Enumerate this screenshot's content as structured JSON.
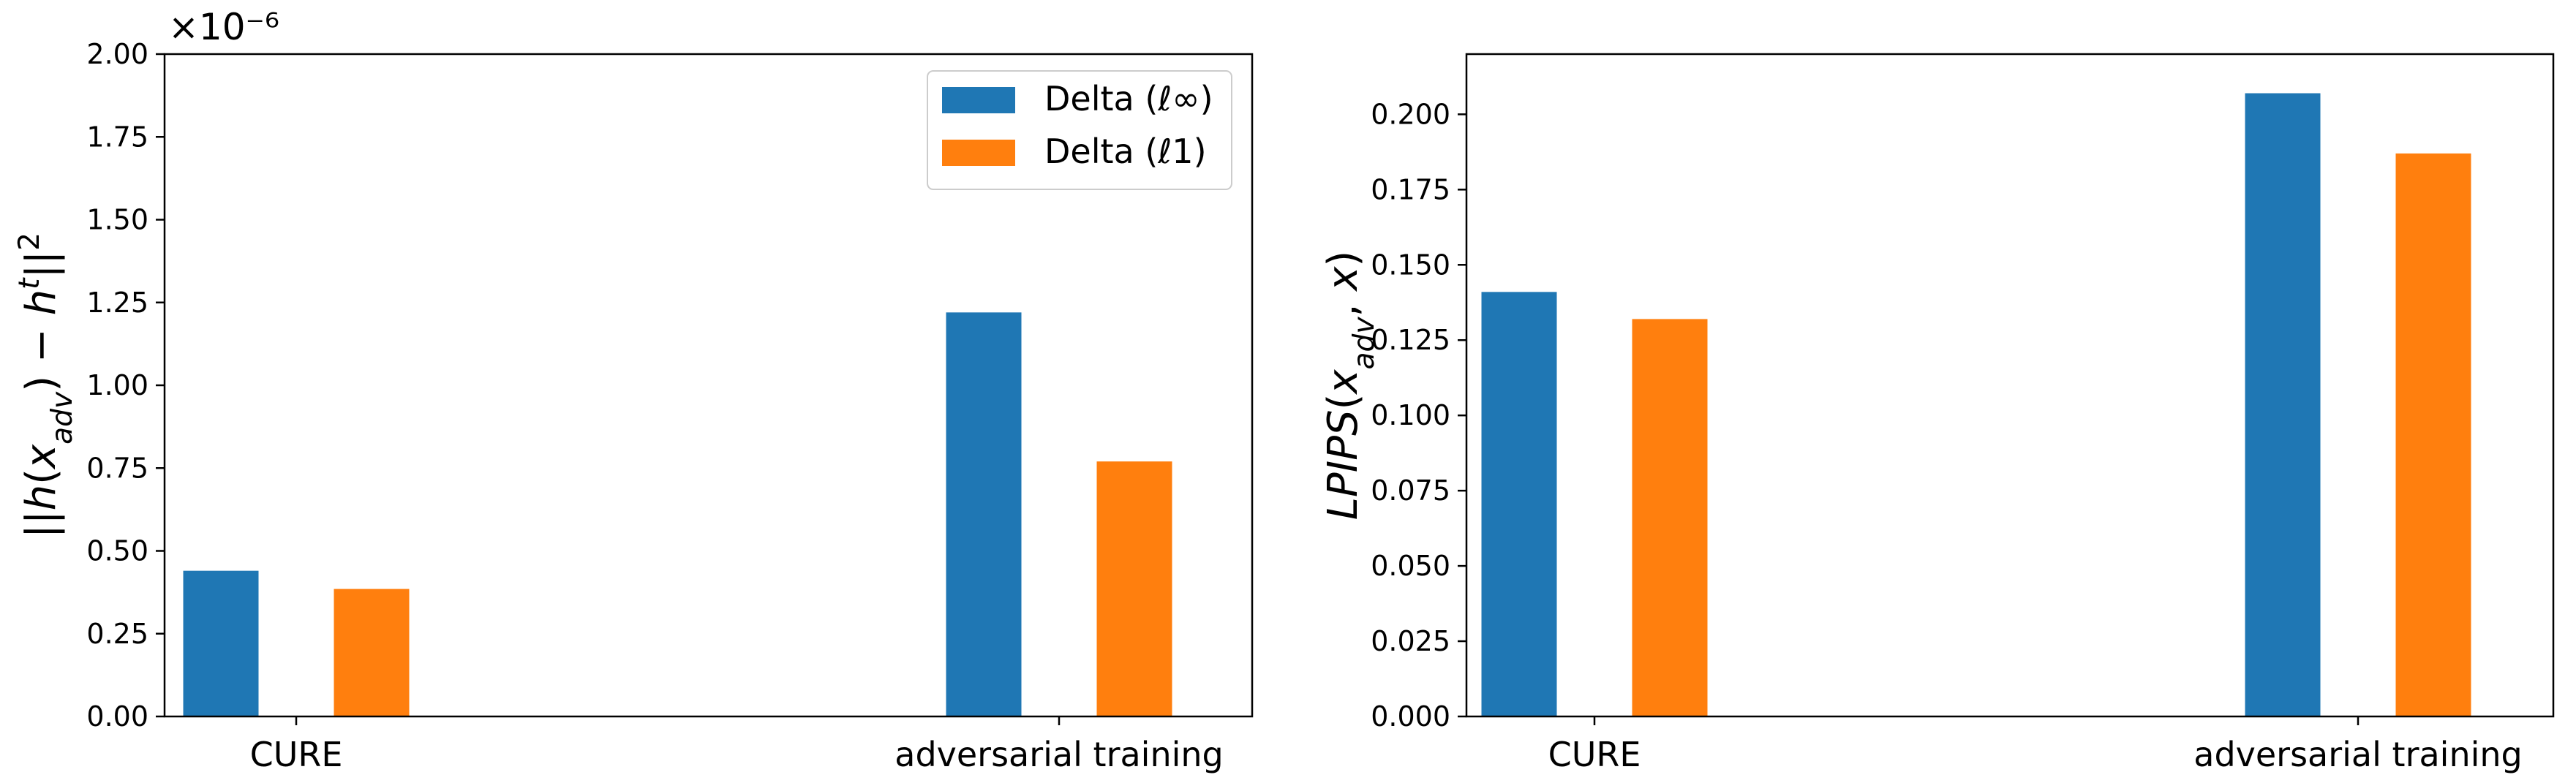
{
  "chart_data": [
    {
      "type": "bar",
      "categories": [
        "CURE",
        "adversarial training"
      ],
      "series": [
        {
          "name": "Delta (ℓ∞)",
          "color": "#1f77b4",
          "values": [
            0.44,
            1.22
          ]
        },
        {
          "name": "Delta (ℓ1)",
          "color": "#ff7f0e",
          "values": [
            0.385,
            0.77
          ]
        }
      ],
      "ylabel": "||h(x_adv) − h^t||²",
      "ylim": [
        0,
        2.0
      ],
      "yticks": [
        "0.00",
        "0.25",
        "0.50",
        "0.75",
        "1.00",
        "1.25",
        "1.50",
        "1.75",
        "2.00"
      ],
      "y_offset_text": "×10⁻⁶",
      "legend": "top-right",
      "grid": false
    },
    {
      "type": "bar",
      "categories": [
        "CURE",
        "adversarial training"
      ],
      "series": [
        {
          "color": "#1f77b4",
          "values": [
            0.141,
            0.207
          ]
        },
        {
          "color": "#ff7f0e",
          "values": [
            0.132,
            0.187
          ]
        }
      ],
      "ylabel": "LPIPS(x_adv, x)",
      "ylim": [
        0,
        0.22
      ],
      "yticks": [
        "0.000",
        "0.025",
        "0.050",
        "0.075",
        "0.100",
        "0.125",
        "0.150",
        "0.175",
        "0.200"
      ],
      "grid": false
    }
  ]
}
